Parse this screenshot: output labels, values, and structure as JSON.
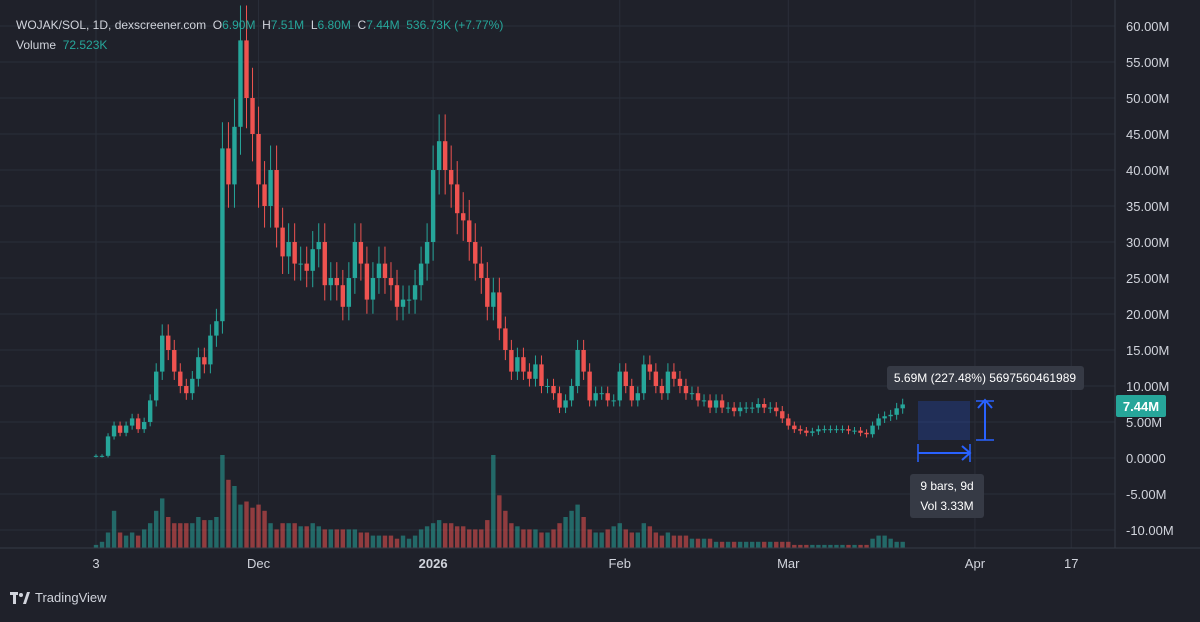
{
  "header": {
    "symbol": "WOJAK/SOL, 1D, dexscreener.com",
    "open_label": "O",
    "open": "6.90M",
    "high_label": "H",
    "high": "7.51M",
    "low_label": "L",
    "low": "6.80M",
    "close_label": "C",
    "close": "7.44M",
    "change": "536.73K (+7.77%)",
    "volume_label": "Volume",
    "volume_value": "72.523K"
  },
  "price_tag": "7.44M",
  "measure": {
    "price_label": "5.69M (227.48%) 5697560461989",
    "bars_label": "9 bars, 9d",
    "vol_label": "Vol 3.33M"
  },
  "brand": "TradingView",
  "colors": {
    "up": "#26a69a",
    "down": "#ef5350",
    "measure": "#2962ff",
    "background": "#1f212a"
  },
  "chart_data": {
    "type": "candlestick",
    "y_ticks": [
      "60.00M",
      "55.00M",
      "50.00M",
      "45.00M",
      "40.00M",
      "35.00M",
      "30.00M",
      "25.00M",
      "20.00M",
      "15.00M",
      "10.00M",
      "5.00M",
      "0.0000",
      "-5.00M",
      "-10.00M"
    ],
    "y_tick_values": [
      60,
      55,
      50,
      45,
      40,
      35,
      30,
      25,
      20,
      15,
      10,
      5,
      0,
      -5,
      -10
    ],
    "ylim": [
      -12,
      62
    ],
    "x_ticks": [
      {
        "label": "3",
        "index": 0
      },
      {
        "label": "Dec",
        "index": 27
      },
      {
        "label": "2026",
        "index": 56
      },
      {
        "label": "Feb",
        "index": 87
      },
      {
        "label": "Mar",
        "index": 115
      },
      {
        "label": "Apr",
        "index": 146
      },
      {
        "label": "17",
        "index": 162
      }
    ],
    "close_series_millions": [
      0.3,
      0.3,
      3,
      4.5,
      3.5,
      4.5,
      5.5,
      4,
      5,
      8,
      12,
      17,
      15,
      12,
      10,
      9,
      11,
      14,
      13,
      17,
      19,
      43,
      38,
      46,
      58,
      50,
      45,
      38,
      35,
      40,
      32,
      28,
      30,
      27,
      27,
      26,
      29,
      30,
      24,
      25,
      24,
      21,
      25,
      30,
      27,
      22,
      25,
      27,
      25,
      24,
      21,
      22,
      22,
      24,
      27,
      30,
      40,
      44,
      40,
      38,
      34,
      33,
      30,
      27,
      25,
      21,
      23,
      18,
      15,
      12,
      14,
      12,
      11,
      13,
      10,
      10,
      9,
      7,
      8,
      10,
      15,
      12,
      8,
      9,
      9,
      8,
      8,
      12,
      10,
      8,
      9,
      13,
      12,
      10,
      9,
      12,
      11,
      10,
      9,
      9,
      8,
      8,
      7,
      8,
      7,
      7,
      6.5,
      7,
      7,
      7,
      7.5,
      7,
      7,
      6.5,
      5.5,
      4.5,
      4,
      3.8,
      3.5,
      3.7,
      4,
      4,
      4,
      4,
      4,
      3.8,
      3.8,
      3.5,
      3.3,
      4.5,
      5.5,
      5.8,
      6,
      6.9,
      7.44
    ],
    "volume_series_millions": [
      1,
      2,
      5,
      12,
      5,
      4,
      5,
      4,
      6,
      8,
      12,
      16,
      10,
      8,
      8,
      8,
      8,
      10,
      9,
      9,
      10,
      30,
      22,
      20,
      14,
      15,
      13,
      14,
      12,
      8,
      6,
      8,
      8,
      8,
      7,
      7,
      8,
      7,
      6,
      6,
      6,
      6,
      6,
      6,
      5,
      5,
      4,
      4,
      4,
      4,
      3,
      4,
      3,
      4,
      6,
      7,
      8,
      9,
      8,
      8,
      7,
      7,
      6,
      6,
      6,
      9,
      30,
      17,
      12,
      8,
      7,
      6,
      6,
      6,
      5,
      5,
      6,
      8,
      10,
      12,
      14,
      10,
      6,
      5,
      5,
      6,
      7,
      8,
      6,
      5,
      5,
      8,
      7,
      5,
      4,
      5,
      4,
      4,
      4,
      3,
      3,
      3,
      3,
      2,
      2,
      2,
      2,
      2,
      2,
      2,
      2,
      2,
      2,
      2,
      2,
      2,
      1,
      1,
      1,
      1,
      1,
      1,
      1,
      1,
      1,
      1,
      1,
      1,
      1,
      3,
      4,
      4,
      3,
      2,
      2
    ]
  }
}
